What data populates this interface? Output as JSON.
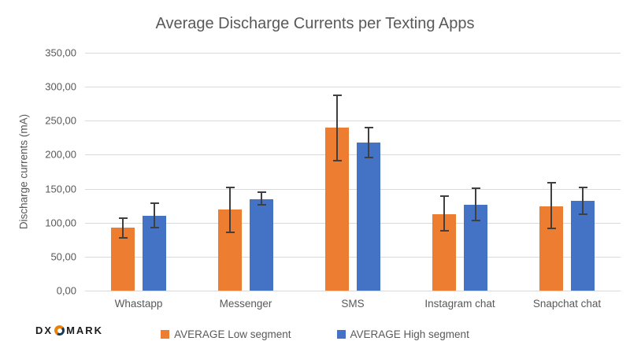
{
  "colors": {
    "text": "#595959",
    "gridline": "#D9D9D9",
    "error_bar": "#404040",
    "background": "#FFFFFF",
    "series_orange": "#ED7D31",
    "series_blue": "#4472C4"
  },
  "chart_data": {
    "type": "bar",
    "title": "Average Discharge Currents per Texting Apps",
    "xlabel": "",
    "ylabel": "Discharge currents (mA)",
    "ylim": [
      0,
      350
    ],
    "grid": true,
    "legend_position": "bottom",
    "yticks": [
      {
        "value": 350,
        "label": "350,00"
      },
      {
        "value": 300,
        "label": "300,00"
      },
      {
        "value": 250,
        "label": "250,00"
      },
      {
        "value": 200,
        "label": "200,00"
      },
      {
        "value": 150,
        "label": "150,00"
      },
      {
        "value": 100,
        "label": "100,00"
      },
      {
        "value": 50,
        "label": "50,00"
      },
      {
        "value": 0,
        "label": "0,00"
      }
    ],
    "categories": [
      "Whastapp",
      "Messenger",
      "SMS",
      "Instagram chat",
      "Snapchat chat"
    ],
    "series": [
      {
        "name": "AVERAGE Low segment",
        "color": "#ED7D31",
        "values": [
          93,
          119,
          240,
          113,
          124
        ],
        "error_low": [
          77,
          85,
          190,
          87,
          90
        ],
        "error_high": [
          108,
          153,
          288,
          140,
          160
        ]
      },
      {
        "name": "AVERAGE High segment",
        "color": "#4472C4",
        "values": [
          110,
          135,
          218,
          126,
          132
        ],
        "error_low": [
          92,
          125,
          195,
          102,
          111
        ],
        "error_high": [
          130,
          146,
          241,
          152,
          153
        ]
      }
    ]
  },
  "logo": {
    "prefix": "DX",
    "suffix": "MARK"
  }
}
